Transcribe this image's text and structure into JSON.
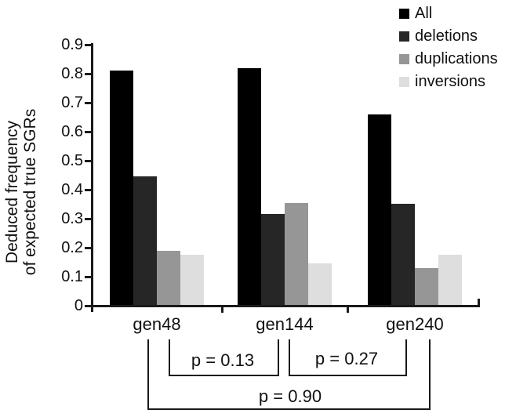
{
  "chart_data": {
    "type": "bar",
    "title": "",
    "xlabel": "",
    "ylabel": "Deduced frequency of expected true SGRs",
    "ylabel_lines": [
      "Deduced frequency",
      "of expected true SGRs"
    ],
    "categories": [
      "gen48",
      "gen144",
      "gen240"
    ],
    "series": [
      {
        "name": "All",
        "color": "#000000",
        "values": [
          0.81,
          0.82,
          0.66
        ]
      },
      {
        "name": "deletions",
        "color": "#262626",
        "values": [
          0.445,
          0.315,
          0.35
        ]
      },
      {
        "name": "duplications",
        "color": "#969696",
        "values": [
          0.19,
          0.355,
          0.13
        ]
      },
      {
        "name": "inversions",
        "color": "#dedede",
        "values": [
          0.175,
          0.145,
          0.175
        ]
      }
    ],
    "ylim": [
      0,
      0.9
    ],
    "ytick_step": 0.1,
    "ytick_labels": [
      "0",
      "0.1",
      "0.2",
      "0.3",
      "0.4",
      "0.5",
      "0.6",
      "0.7",
      "0.8",
      "0.9"
    ],
    "grid": false,
    "legend_position": "top-right",
    "annotations": [
      {
        "label": "p = 0.13",
        "from": "gen48",
        "to": "gen144"
      },
      {
        "label": "p = 0.27",
        "from": "gen144",
        "to": "gen240"
      },
      {
        "label": "p = 0.90",
        "from": "gen48",
        "to": "gen240"
      }
    ]
  }
}
